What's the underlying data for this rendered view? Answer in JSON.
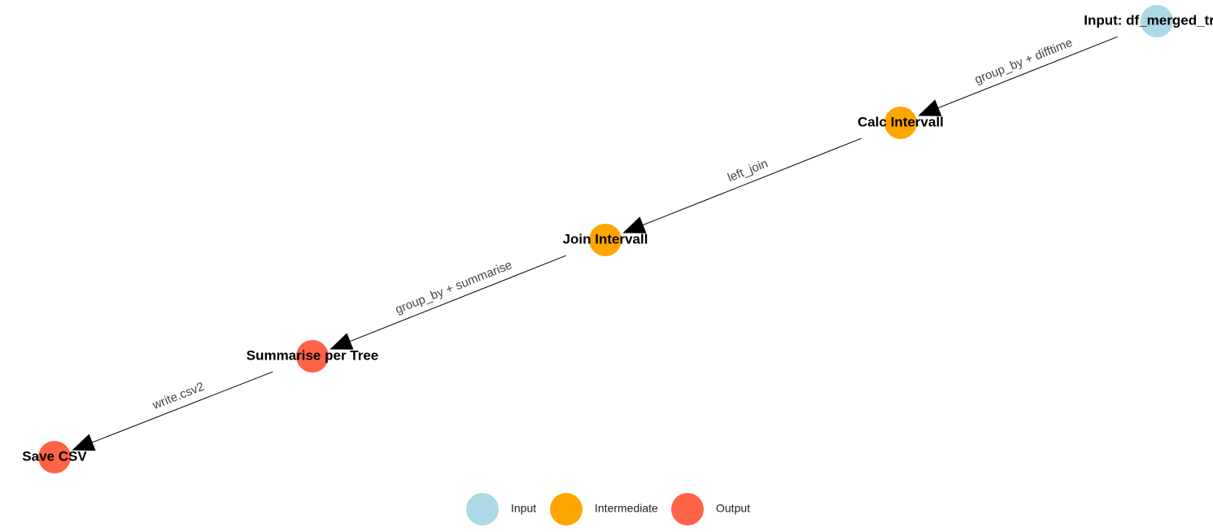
{
  "colors": {
    "input": "#add8e6",
    "intermediate": "#ffa500",
    "output": "#ff6347"
  },
  "nodes": [
    {
      "id": "input",
      "label": "Input: df_merged_tree",
      "group": "input"
    },
    {
      "id": "calc",
      "label": "Calc Intervall",
      "group": "intermediate"
    },
    {
      "id": "join",
      "label": "Join Intervall",
      "group": "intermediate"
    },
    {
      "id": "summarise",
      "label": "Summarise per Tree",
      "group": "output"
    },
    {
      "id": "save",
      "label": "Save CSV",
      "group": "output"
    }
  ],
  "edges": [
    {
      "from": "input",
      "to": "calc",
      "label": "group_by + difftime"
    },
    {
      "from": "calc",
      "to": "join",
      "label": "left_join"
    },
    {
      "from": "join",
      "to": "summarise",
      "label": "group_by + summarise"
    },
    {
      "from": "summarise",
      "to": "save",
      "label": "write.csv2"
    }
  ],
  "legend": [
    {
      "label": "Input",
      "group": "input"
    },
    {
      "label": "Intermediate",
      "group": "intermediate"
    },
    {
      "label": "Output",
      "group": "output"
    }
  ]
}
